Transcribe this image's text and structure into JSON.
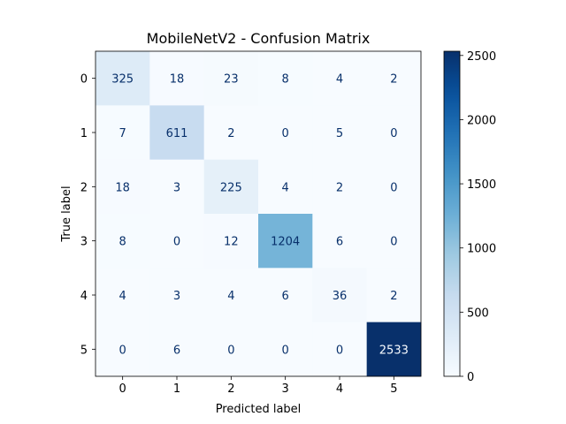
{
  "chart_data": {
    "type": "heatmap",
    "title": "MobileNetV2 - Confusion Matrix",
    "xlabel": "Predicted label",
    "ylabel": "True label",
    "x_categories": [
      "0",
      "1",
      "2",
      "3",
      "4",
      "5"
    ],
    "y_categories": [
      "0",
      "1",
      "2",
      "3",
      "4",
      "5"
    ],
    "matrix": [
      [
        325,
        18,
        23,
        8,
        4,
        2
      ],
      [
        7,
        611,
        2,
        0,
        5,
        0
      ],
      [
        18,
        3,
        225,
        4,
        2,
        0
      ],
      [
        8,
        0,
        12,
        1204,
        6,
        0
      ],
      [
        4,
        3,
        4,
        6,
        36,
        2
      ],
      [
        0,
        6,
        0,
        0,
        0,
        2533
      ]
    ],
    "colormap": "Blues",
    "colorbar": {
      "range": [
        0,
        2533
      ],
      "ticks": [
        0,
        500,
        1000,
        1500,
        2000,
        2500
      ]
    },
    "colors": {
      "cmap_low": "#f7fbff",
      "cmap_high": "#08306b",
      "text_dark": "#08306b",
      "text_light": "#f7fbff"
    }
  }
}
